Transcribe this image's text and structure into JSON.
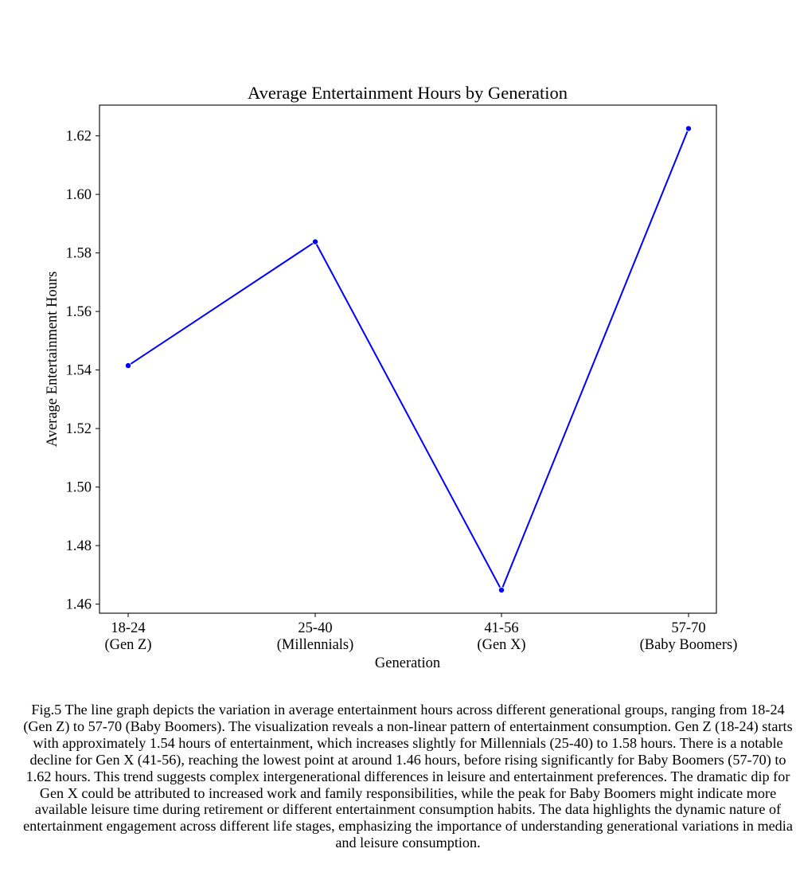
{
  "chart_data": {
    "type": "line",
    "title": "Average Entertainment Hours by Generation",
    "xlabel": "Generation",
    "ylabel": "Average Entertainment Hours",
    "categories": [
      [
        "18-24",
        "(Gen Z)"
      ],
      [
        "25-40",
        "(Millennials)"
      ],
      [
        "41-56",
        "(Gen X)"
      ],
      [
        "57-70",
        "(Baby Boomers)"
      ]
    ],
    "series": [
      {
        "values": [
          1.5415,
          1.5838,
          1.4648,
          1.6225
        ],
        "color": "#0000ff",
        "marker": "circle"
      }
    ],
    "yticks": [
      "1.46",
      "1.48",
      "1.50",
      "1.52",
      "1.54",
      "1.56",
      "1.58",
      "1.60",
      "1.62"
    ],
    "ylim": [
      1.4569,
      1.6305
    ],
    "grid": false,
    "legend": "none"
  },
  "caption": "Fig.5 The line graph depicts the variation in average entertainment hours across different generational groups, ranging from 18-24 (Gen Z) to 57-70 (Baby Boomers). The visualization reveals a non-linear pattern of entertainment consumption. Gen Z (18-24) starts with approximately 1.54 hours of entertainment, which increases slightly for Millennials (25-40) to 1.58 hours. There is a notable decline for Gen X (41-56), reaching the lowest point at around 1.46 hours, before rising significantly for Baby Boomers (57-70) to 1.62 hours. This trend suggests complex intergenerational differences in leisure and entertainment preferences. The dramatic dip for Gen X could be attributed to increased work and family responsibilities, while the peak for Baby Boomers might indicate more available leisure time during retirement or different entertainment consumption habits. The data highlights the dynamic nature of entertainment engagement across different life stages, emphasizing the importance of understanding generational variations in media and leisure consumption."
}
